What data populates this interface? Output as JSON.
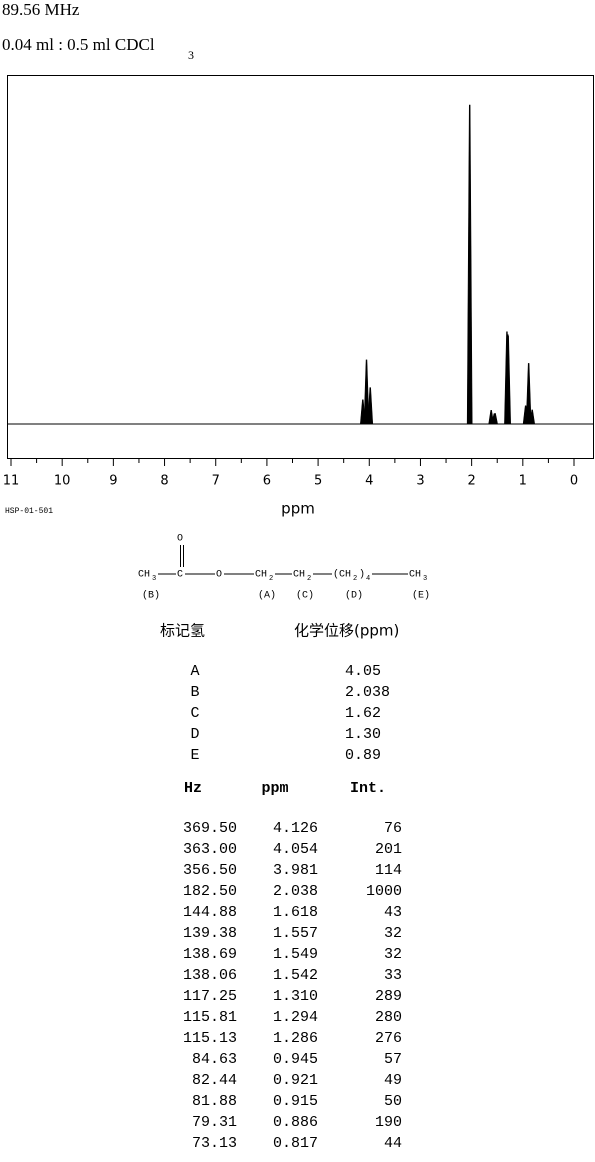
{
  "header": {
    "frequency": "89.56 MHz",
    "sample": "0.04 ml : 0.5 ml CDCl",
    "sample_subscript": "3"
  },
  "spectrum": {
    "xlabel": "ppm",
    "code": "HSP-01-501",
    "xlim": [
      11,
      0
    ],
    "xticks": [
      11,
      10,
      9,
      8,
      7,
      6,
      5,
      4,
      3,
      2,
      1,
      0
    ],
    "intensity_max": 1000
  },
  "structure": {
    "carbonyl_o": "O",
    "ch3_left": "CH",
    "ch3_left_sub": "3",
    "carbon": "C",
    "ester_o": "O",
    "ch2_a": "CH",
    "ch2_a_sub": "2",
    "ch2_c": "CH",
    "ch2_c_sub": "2",
    "ch2_d": "(CH",
    "ch2_d_sub": "2",
    "ch2_d_close": ")",
    "ch2_d_count": "4",
    "ch3_right": "CH",
    "ch3_right_sub": "3",
    "label_b": "(B)",
    "label_a": "(A)",
    "label_c": "(C)",
    "label_d": "(D)",
    "label_e": "(E)"
  },
  "assignments": {
    "headers": [
      "标记氢",
      "化学位移(ppm)"
    ],
    "rows": [
      [
        "A",
        "4.05"
      ],
      [
        "B",
        "2.038"
      ],
      [
        "C",
        "1.62"
      ],
      [
        "D",
        "1.30"
      ],
      [
        "E",
        "0.89"
      ]
    ]
  },
  "peaks": {
    "headers": [
      "Hz",
      "ppm",
      "Int."
    ],
    "rows": [
      [
        "369.50",
        "4.126",
        "76"
      ],
      [
        "363.00",
        "4.054",
        "201"
      ],
      [
        "356.50",
        "3.981",
        "114"
      ],
      [
        "182.50",
        "2.038",
        "1000"
      ],
      [
        "144.88",
        "1.618",
        "43"
      ],
      [
        "139.38",
        "1.557",
        "32"
      ],
      [
        "138.69",
        "1.549",
        "32"
      ],
      [
        "138.06",
        "1.542",
        "33"
      ],
      [
        "117.25",
        "1.310",
        "289"
      ],
      [
        "115.81",
        "1.294",
        "280"
      ],
      [
        "115.13",
        "1.286",
        "276"
      ],
      [
        "84.63",
        "0.945",
        "57"
      ],
      [
        "82.44",
        "0.921",
        "49"
      ],
      [
        "81.88",
        "0.915",
        "50"
      ],
      [
        "79.31",
        "0.886",
        "190"
      ],
      [
        "73.13",
        "0.817",
        "44"
      ]
    ]
  }
}
